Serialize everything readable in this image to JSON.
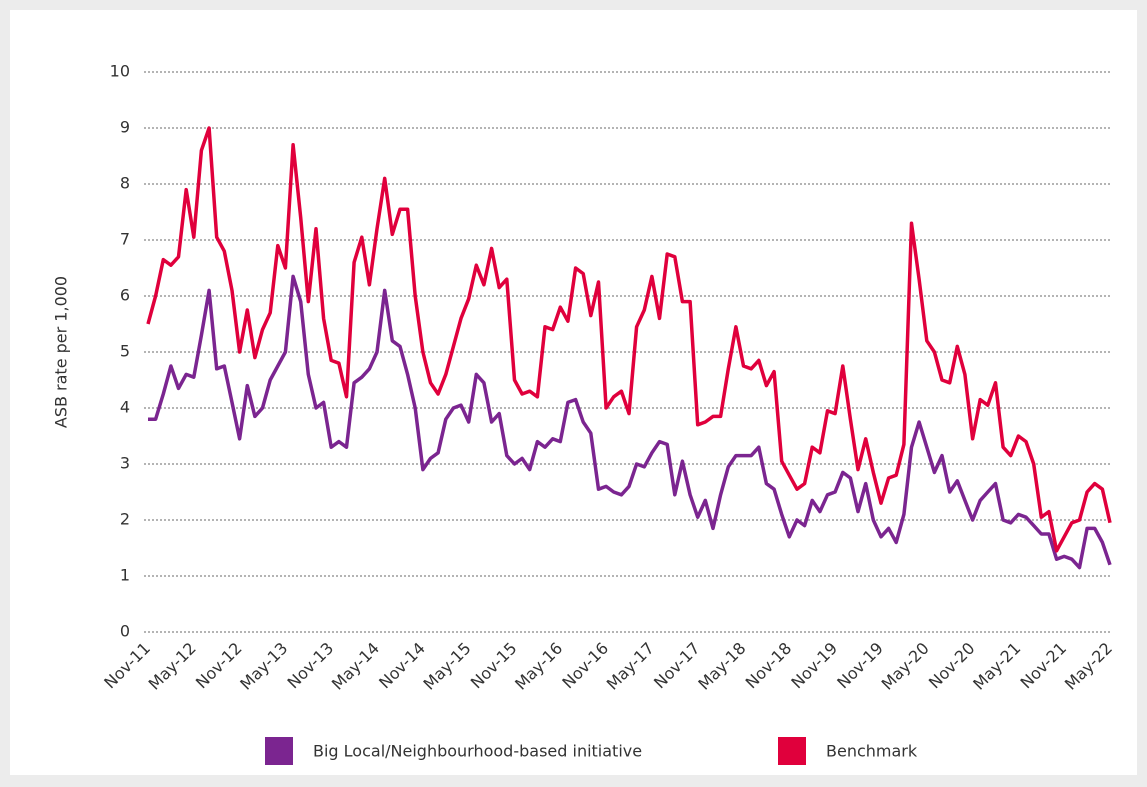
{
  "chart_data": {
    "type": "line",
    "y_label": "ASB rate per 1,000",
    "categories": [
      "Nov-11",
      null,
      null,
      null,
      null,
      null,
      "May-12",
      null,
      null,
      null,
      null,
      null,
      "Nov-12",
      null,
      null,
      null,
      null,
      null,
      "May-13",
      null,
      null,
      null,
      null,
      null,
      "Nov-13",
      null,
      null,
      null,
      null,
      null,
      "May-14",
      null,
      null,
      null,
      null,
      null,
      "Nov-14",
      null,
      null,
      null,
      null,
      null,
      "May-15",
      null,
      null,
      null,
      null,
      null,
      "Nov-15",
      null,
      null,
      null,
      null,
      null,
      "May-16",
      null,
      null,
      null,
      null,
      null,
      "Nov-16",
      null,
      null,
      null,
      null,
      null,
      "May-17",
      null,
      null,
      null,
      null,
      null,
      "Nov-17",
      null,
      null,
      null,
      null,
      null,
      "May-18",
      null,
      null,
      null,
      null,
      null,
      "Nov-18",
      null,
      null,
      null,
      null,
      null,
      "Nov-19",
      null,
      null,
      null,
      null,
      null,
      "Nov-19",
      null,
      null,
      null,
      null,
      null,
      "May-20",
      null,
      null,
      null,
      null,
      null,
      "Nov-20",
      null,
      null,
      null,
      null,
      null,
      "May-21",
      null,
      null,
      null,
      null,
      null,
      "Nov-21",
      null,
      null,
      null,
      null,
      null,
      "May-22"
    ],
    "series": [
      {
        "name": "Big Local/Neighbourhood-based initiative",
        "color": "#7b2590",
        "values": [
          3.8,
          3.8,
          4.25,
          4.75,
          4.35,
          4.6,
          4.55,
          5.3,
          6.1,
          4.7,
          4.75,
          4.1,
          3.45,
          4.4,
          3.85,
          4.0,
          4.5,
          4.75,
          5.0,
          6.35,
          5.9,
          4.6,
          4.0,
          4.1,
          3.3,
          3.4,
          3.3,
          4.45,
          4.55,
          4.7,
          5.0,
          6.1,
          5.2,
          5.1,
          4.6,
          4.0,
          2.9,
          3.1,
          3.2,
          3.8,
          4.0,
          4.05,
          3.75,
          4.6,
          4.45,
          3.75,
          3.9,
          3.15,
          3.0,
          3.1,
          2.9,
          3.4,
          3.3,
          3.45,
          3.4,
          4.1,
          4.15,
          3.75,
          3.55,
          2.55,
          2.6,
          2.5,
          2.45,
          2.6,
          3.0,
          2.95,
          3.2,
          3.4,
          3.35,
          2.45,
          3.05,
          2.45,
          2.05,
          2.35,
          1.85,
          2.45,
          2.95,
          3.15,
          3.15,
          3.15,
          3.3,
          2.65,
          2.55,
          2.1,
          1.7,
          2.0,
          1.9,
          2.35,
          2.15,
          2.45,
          2.5,
          2.85,
          2.75,
          2.15,
          2.65,
          2.0,
          1.7,
          1.85,
          1.6,
          2.1,
          3.3,
          3.75,
          3.3,
          2.85,
          3.15,
          2.5,
          2.7,
          2.35,
          2.0,
          2.35,
          2.5,
          2.65,
          2.0,
          1.95,
          2.1,
          2.05,
          1.9,
          1.75,
          1.75,
          1.3,
          1.35,
          1.3,
          1.15,
          1.85,
          1.85,
          1.6,
          1.2
        ]
      },
      {
        "name": "Benchmark",
        "color": "#e0003c",
        "values": [
          5.5,
          6.0,
          6.65,
          6.55,
          6.7,
          7.9,
          7.05,
          8.6,
          9.0,
          7.05,
          6.8,
          6.1,
          5.0,
          5.75,
          4.9,
          5.4,
          5.7,
          6.9,
          6.5,
          8.7,
          7.4,
          5.9,
          7.2,
          5.6,
          4.85,
          4.8,
          4.2,
          6.6,
          7.05,
          6.2,
          7.2,
          8.1,
          7.1,
          7.55,
          7.55,
          6.0,
          5.0,
          4.45,
          4.25,
          4.6,
          5.1,
          5.6,
          5.95,
          6.55,
          6.2,
          6.85,
          6.15,
          6.3,
          4.5,
          4.25,
          4.3,
          4.2,
          5.45,
          5.4,
          5.8,
          5.55,
          6.5,
          6.4,
          5.65,
          6.25,
          4.0,
          4.2,
          4.3,
          3.9,
          5.45,
          5.75,
          6.35,
          5.6,
          6.75,
          6.7,
          5.9,
          5.9,
          3.7,
          3.75,
          3.85,
          3.85,
          4.7,
          5.45,
          4.75,
          4.7,
          4.85,
          4.4,
          4.65,
          3.05,
          2.8,
          2.55,
          2.65,
          3.3,
          3.2,
          3.95,
          3.9,
          4.75,
          3.8,
          2.9,
          3.45,
          2.85,
          2.3,
          2.75,
          2.8,
          3.35,
          7.3,
          6.3,
          5.2,
          5.0,
          4.5,
          4.45,
          5.1,
          4.6,
          3.45,
          4.15,
          4.05,
          4.45,
          3.3,
          3.15,
          3.5,
          3.4,
          3.0,
          2.05,
          2.15,
          1.45,
          1.7,
          1.95,
          2.0,
          2.5,
          2.65,
          2.55,
          1.95
        ]
      }
    ],
    "ylim": [
      0,
      10
    ],
    "yticks": [
      0,
      1,
      2,
      3,
      4,
      5,
      6,
      7,
      8,
      9,
      10
    ],
    "grid": true
  }
}
